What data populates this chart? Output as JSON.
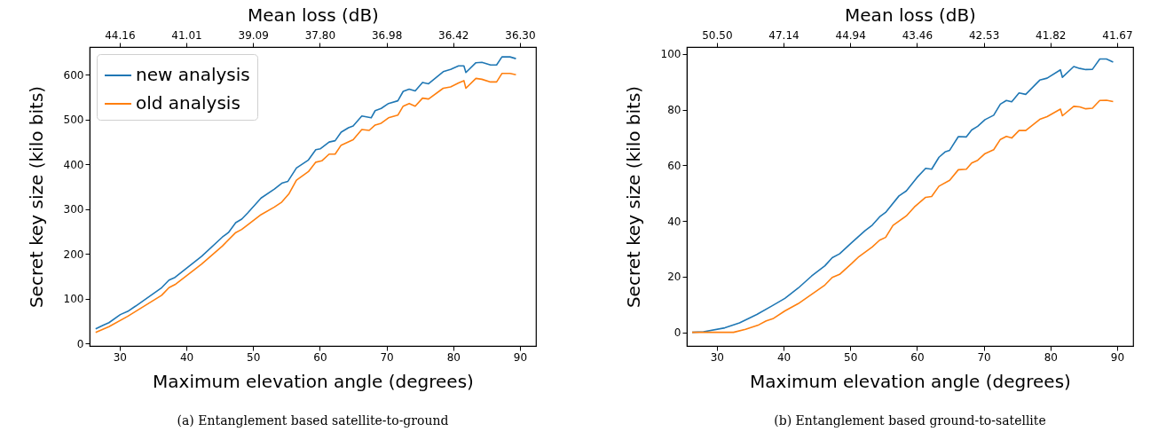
{
  "chart_data": [
    {
      "type": "line",
      "xlabel": "Maximum elevation angle (degrees)",
      "ylabel": "Secret key size (kilo bits)",
      "x2label": "Mean loss (dB)",
      "annotations": [
        "(a) Entanglement based satellite-to-ground",
        "44.16",
        "41.01",
        "39.09",
        "37.80",
        "36.98",
        "36.42",
        "36.30"
      ],
      "xlim": [
        25.5,
        92.4
      ],
      "xticks": [
        30,
        40,
        50,
        60,
        70,
        80,
        90
      ],
      "ylim": [
        -5,
        662
      ],
      "yticks": [
        0,
        100,
        200,
        300,
        400,
        500,
        600
      ],
      "legend": "top left",
      "series": [
        {
          "name": "new analysis",
          "color": "#1f77b4",
          "x": [
            26.4,
            27.5,
            28.4,
            30.1,
            31.2,
            32.4,
            36.3,
            37.4,
            38.3,
            42.3,
            45.4,
            46.3,
            47.4,
            48.3,
            49.2,
            51.2,
            53.2,
            54.3,
            55.2,
            56.5,
            58.3,
            59.4,
            60.1,
            61.4,
            62.3,
            63.2,
            64.3,
            65.0,
            66.3,
            67.7,
            68.3,
            69.2,
            70.3,
            71.7,
            72.5,
            73.4,
            74.3,
            75.4,
            76.3,
            78.5,
            79.6,
            80.8,
            81.6,
            81.9,
            83.4,
            84.3,
            85.6,
            86.5,
            87.3,
            88.5,
            89.4
          ],
          "values": [
            33,
            41,
            47,
            65,
            72,
            84,
            125,
            142,
            148,
            195,
            238,
            248,
            270,
            278,
            292,
            325,
            345,
            358,
            362,
            392,
            410,
            433,
            435,
            450,
            453,
            472,
            482,
            486,
            508,
            504,
            520,
            525,
            536,
            542,
            563,
            568,
            564,
            583,
            580,
            607,
            612,
            620,
            620,
            605,
            627,
            628,
            622,
            622,
            640,
            640,
            636
          ]
        },
        {
          "name": "old analysis",
          "color": "#ff7f0e",
          "x": [
            26.4,
            28.4,
            31.2,
            36.3,
            37.4,
            38.3,
            42.3,
            45.4,
            47.4,
            48.3,
            51.2,
            53.2,
            54.3,
            55.4,
            56.5,
            58.3,
            59.4,
            60.3,
            61.4,
            62.3,
            63.2,
            65.0,
            66.3,
            67.4,
            68.3,
            69.2,
            70.3,
            71.7,
            72.5,
            73.4,
            74.3,
            75.4,
            76.3,
            78.5,
            79.6,
            80.8,
            81.6,
            81.9,
            83.4,
            84.3,
            85.6,
            86.5,
            87.3,
            88.5,
            89.4
          ],
          "values": [
            25,
            38,
            61,
            108,
            125,
            132,
            178,
            218,
            248,
            255,
            288,
            305,
            316,
            335,
            365,
            384,
            405,
            408,
            423,
            423,
            443,
            455,
            478,
            476,
            488,
            492,
            504,
            510,
            530,
            536,
            530,
            548,
            546,
            570,
            573,
            582,
            587,
            570,
            592,
            590,
            584,
            584,
            603,
            603,
            600
          ]
        }
      ]
    },
    {
      "type": "line",
      "xlabel": "Maximum elevation angle (degrees)",
      "ylabel": "Secret key size (kilo bits)",
      "x2label": "Mean loss (dB)",
      "annotations": [
        "(b) Entanglement based ground-to-satellite",
        "50.50",
        "47.14",
        "44.94",
        "43.46",
        "42.53",
        "41.82",
        "41.67"
      ],
      "xlim": [
        25.5,
        92.4
      ],
      "xticks": [
        30,
        40,
        50,
        60,
        70,
        80,
        90
      ],
      "ylim": [
        -4.9,
        102.5
      ],
      "yticks": [
        0,
        20,
        40,
        60,
        80,
        100
      ],
      "legend": "top left",
      "series": [
        {
          "name": "new analysis",
          "color": "#1f77b4",
          "x": [
            26.3,
            28.0,
            31.2,
            33.4,
            36.0,
            38.2,
            40.2,
            42.2,
            44.2,
            46.2,
            47.3,
            48.4,
            50.2,
            52.2,
            53.3,
            54.4,
            55.3,
            57.3,
            58.4,
            60.0,
            61.3,
            62.2,
            63.3,
            64.2,
            64.9,
            66.2,
            67.4,
            68.2,
            69.1,
            70.2,
            71.5,
            72.5,
            73.4,
            74.2,
            75.3,
            76.3,
            78.4,
            79.5,
            81.5,
            81.8,
            83.5,
            84.4,
            85.3,
            86.3,
            87.4,
            88.4,
            89.4
          ],
          "values": [
            0,
            0.2,
            1.6,
            3.4,
            6.4,
            9.4,
            12.2,
            15.9,
            20.2,
            23.9,
            26.8,
            28.2,
            32.2,
            36.5,
            38.5,
            41.5,
            43.1,
            49.0,
            50.8,
            55.6,
            58.9,
            58.6,
            62.9,
            64.8,
            65.4,
            70.3,
            70.2,
            72.7,
            74.0,
            76.4,
            78.0,
            82.0,
            83.3,
            82.8,
            86.0,
            85.5,
            90.6,
            91.3,
            94.3,
            91.6,
            95.5,
            94.8,
            94.4,
            94.5,
            98.2,
            98.2,
            97.1
          ]
        },
        {
          "name": "old analysis",
          "color": "#ff7f0e",
          "x": [
            26.3,
            32.5,
            34.3,
            36.3,
            37.4,
            38.5,
            40.2,
            42.2,
            44.2,
            46.2,
            47.3,
            48.4,
            50.2,
            51.3,
            53.3,
            54.4,
            55.3,
            56.4,
            58.4,
            59.6,
            61.3,
            62.2,
            63.3,
            64.9,
            66.2,
            67.4,
            68.2,
            69.1,
            70.2,
            71.5,
            72.5,
            73.4,
            74.2,
            75.3,
            76.3,
            78.4,
            79.5,
            81.5,
            81.8,
            83.5,
            84.4,
            85.3,
            86.3,
            87.4,
            88.4,
            89.4
          ],
          "values": [
            0,
            0,
            1.1,
            2.7,
            4.1,
            5.0,
            7.7,
            10.3,
            13.6,
            17.0,
            19.7,
            20.8,
            24.7,
            27.2,
            30.7,
            33.1,
            34.1,
            38.4,
            41.8,
            45.0,
            48.5,
            48.8,
            52.5,
            54.6,
            58.4,
            58.6,
            60.8,
            61.8,
            64.2,
            65.6,
            69.3,
            70.4,
            69.8,
            72.5,
            72.5,
            76.5,
            77.5,
            80.2,
            77.8,
            81.2,
            81.0,
            80.3,
            80.5,
            83.3,
            83.4,
            82.9
          ]
        }
      ]
    }
  ]
}
